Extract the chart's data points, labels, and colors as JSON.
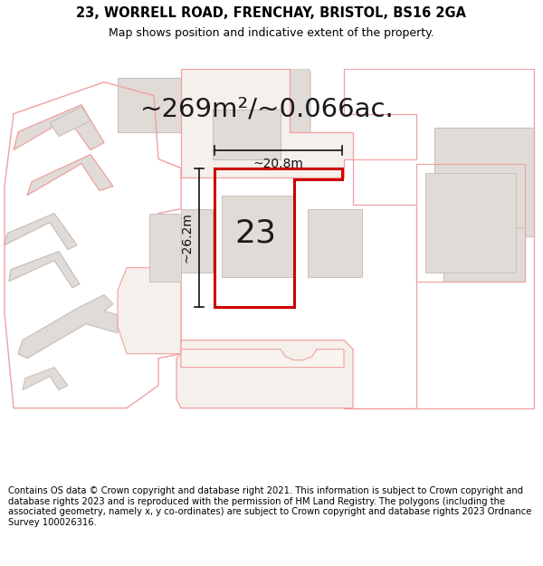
{
  "title": "23, WORRELL ROAD, FRENCHAY, BRISTOL, BS16 2GA",
  "subtitle": "Map shows position and indicative extent of the property.",
  "area_text": "~269m²/~0.066ac.",
  "dim_width": "~20.8m",
  "dim_height": "~26.2m",
  "house_number": "23",
  "footer": "Contains OS data © Crown copyright and database right 2021. This information is subject to Crown copyright and database rights 2023 and is reproduced with the permission of HM Land Registry. The polygons (including the associated geometry, namely x, y co-ordinates) are subject to Crown copyright and database rights 2023 Ordnance Survey 100026316.",
  "bg_color": "#ffffff",
  "map_bg": "#ffffff",
  "title_fontsize": 10.5,
  "subtitle_fontsize": 9,
  "area_fontsize": 21,
  "number_fontsize": 26,
  "dim_fontsize": 10,
  "footer_fontsize": 7.2
}
